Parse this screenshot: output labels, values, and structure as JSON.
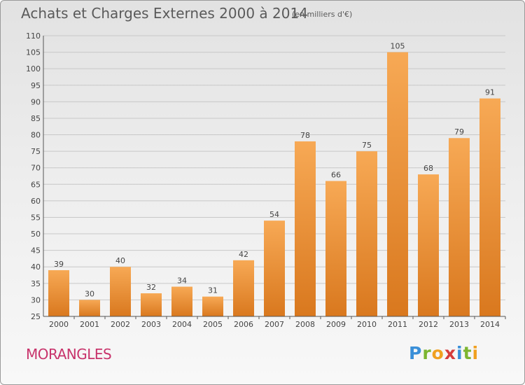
{
  "header": {
    "title": "Achats et Charges Externes 2000 à 2014",
    "subtitle": "(en milliers d'€)"
  },
  "footer": {
    "town": "MORANGLES",
    "logo_letters": [
      {
        "char": "P",
        "color": "#3a8fd8"
      },
      {
        "char": "r",
        "color": "#7cb530"
      },
      {
        "char": "o",
        "color": "#f0a020"
      },
      {
        "char": "x",
        "color": "#d63c3c"
      },
      {
        "char": "i",
        "color": "#3a8fd8"
      },
      {
        "char": "t",
        "color": "#7cb530"
      },
      {
        "char": "i",
        "color": "#f0a020"
      }
    ]
  },
  "colors": {
    "bar_top": "#f7a955",
    "bar_bottom": "#d9781e",
    "grid": "#c8c8c8",
    "axis": "#555555"
  },
  "chart_data": {
    "type": "bar",
    "categories": [
      "2000",
      "2001",
      "2002",
      "2003",
      "2004",
      "2005",
      "2006",
      "2007",
      "2008",
      "2009",
      "2010",
      "2011",
      "2012",
      "2013",
      "2014"
    ],
    "values": [
      39,
      30,
      40,
      32,
      34,
      31,
      42,
      54,
      78,
      66,
      75,
      105,
      68,
      79,
      91
    ],
    "ylim": [
      25,
      110
    ],
    "yticks": [
      25,
      30,
      35,
      40,
      45,
      50,
      55,
      60,
      65,
      70,
      75,
      80,
      85,
      90,
      95,
      100,
      105,
      110
    ],
    "grid": true,
    "legend": "none"
  }
}
